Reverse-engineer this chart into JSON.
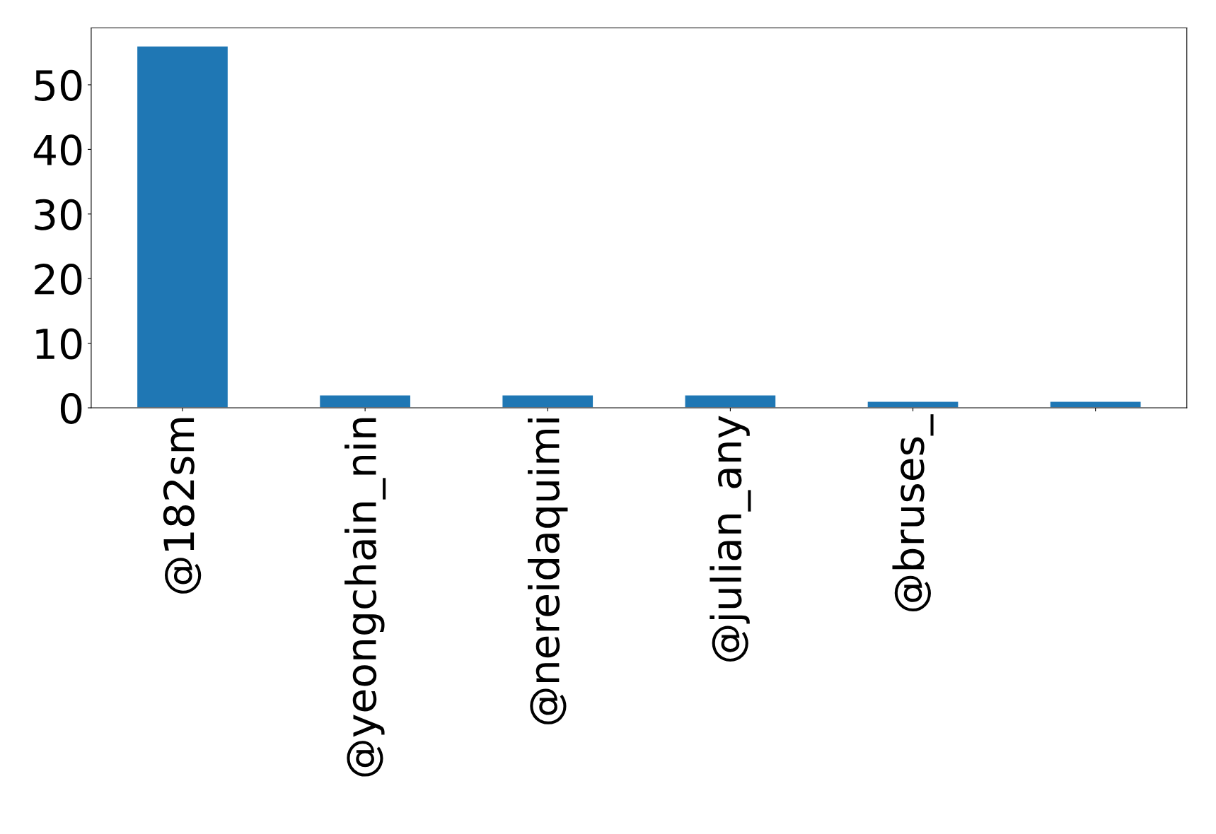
{
  "chart_data": {
    "type": "bar",
    "categories": [
      "@182sm",
      "@yeongchain_nin",
      "@nereidaquimi",
      "@julian_any",
      "@bruses_",
      null
    ],
    "values": [
      56,
      2,
      2,
      2,
      1,
      1
    ],
    "color": "#1f77b4",
    "ylim": [
      0,
      58.8
    ],
    "yticks": [
      0,
      10,
      20,
      30,
      40,
      50
    ],
    "grid": false
  }
}
